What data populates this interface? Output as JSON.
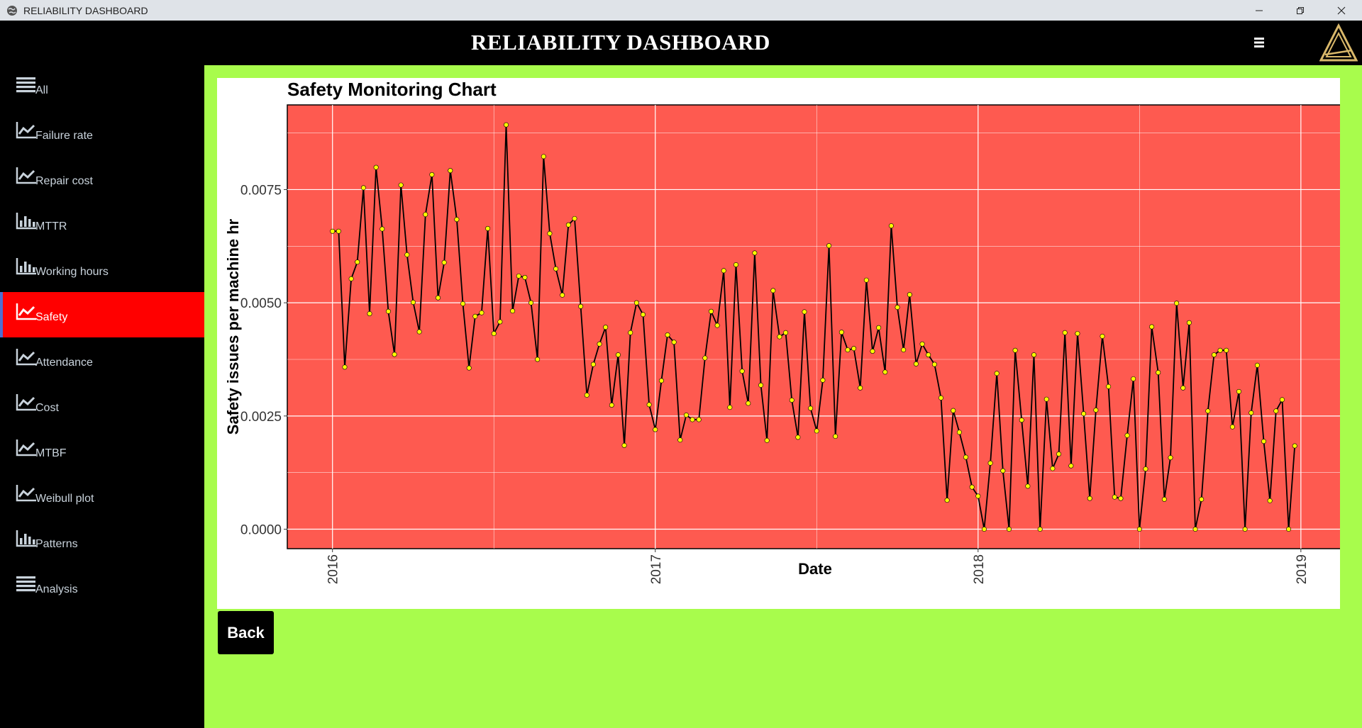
{
  "window": {
    "title": "RELIABILITY DASHBOARD"
  },
  "header": {
    "title": "RELIABILITY DASHBOARD",
    "menu_icon": "hamburger-icon",
    "logo_icon": "triangle-logo-icon"
  },
  "sidebar": {
    "items": [
      {
        "label": "All",
        "icon": "list-icon",
        "active": false
      },
      {
        "label": "Failure rate",
        "icon": "line-chart-icon",
        "active": false
      },
      {
        "label": "Repair cost",
        "icon": "line-chart-icon",
        "active": false
      },
      {
        "label": "MTTR",
        "icon": "bar-chart-icon",
        "active": false
      },
      {
        "label": "Working hours",
        "icon": "bar-chart-icon",
        "active": false
      },
      {
        "label": "Safety",
        "icon": "line-chart-icon",
        "active": true
      },
      {
        "label": "Attendance",
        "icon": "line-chart-icon",
        "active": false
      },
      {
        "label": "Cost",
        "icon": "line-chart-icon",
        "active": false
      },
      {
        "label": "MTBF",
        "icon": "line-chart-icon",
        "active": false
      },
      {
        "label": "Weibull plot",
        "icon": "line-chart-icon",
        "active": false
      },
      {
        "label": "Patterns",
        "icon": "bar-chart-icon",
        "active": false
      },
      {
        "label": "Analysis",
        "icon": "list-icon",
        "active": false
      }
    ]
  },
  "main": {
    "back_label": "Back"
  },
  "colors": {
    "content_bg": "#a8fc4c",
    "plot_bg": "#fe5a50",
    "active_nav": "#ff0000",
    "point": "#ffff00",
    "line": "#000000"
  },
  "chart_data": {
    "type": "line",
    "title": "Safety Monitoring Chart",
    "xlabel": "Date",
    "ylabel": "Safety issues per machine hr",
    "x_ticks": [
      "2016",
      "2017",
      "2018",
      "2019"
    ],
    "y_ticks": [
      "0.0000",
      "0.0025",
      "0.0050",
      "0.0075"
    ],
    "xlim": [
      2015.86,
      2019.13
    ],
    "ylim": [
      -0.00043,
      0.00937
    ],
    "grid": true,
    "x": [
      2016.0,
      2016.019,
      2016.038,
      2016.058,
      2016.077,
      2016.096,
      2016.115,
      2016.135,
      2016.154,
      2016.173,
      2016.192,
      2016.212,
      2016.231,
      2016.25,
      2016.269,
      2016.288,
      2016.308,
      2016.327,
      2016.346,
      2016.365,
      2016.385,
      2016.404,
      2016.423,
      2016.442,
      2016.462,
      2016.481,
      2016.5,
      2016.519,
      2016.538,
      2016.558,
      2016.577,
      2016.596,
      2016.615,
      2016.635,
      2016.654,
      2016.673,
      2016.692,
      2016.712,
      2016.731,
      2016.75,
      2016.769,
      2016.788,
      2016.808,
      2016.827,
      2016.846,
      2016.865,
      2016.885,
      2016.904,
      2016.923,
      2016.942,
      2016.962,
      2016.981,
      2017.0,
      2017.019,
      2017.038,
      2017.058,
      2017.077,
      2017.096,
      2017.115,
      2017.135,
      2017.154,
      2017.173,
      2017.192,
      2017.212,
      2017.231,
      2017.25,
      2017.269,
      2017.288,
      2017.308,
      2017.327,
      2017.346,
      2017.365,
      2017.385,
      2017.404,
      2017.423,
      2017.442,
      2017.462,
      2017.481,
      2017.5,
      2017.519,
      2017.538,
      2017.558,
      2017.577,
      2017.596,
      2017.615,
      2017.635,
      2017.654,
      2017.673,
      2017.692,
      2017.712,
      2017.731,
      2017.75,
      2017.769,
      2017.788,
      2017.808,
      2017.827,
      2017.846,
      2017.865,
      2017.885,
      2017.904,
      2017.923,
      2017.942,
      2017.962,
      2017.981,
      2018.0,
      2018.019,
      2018.038,
      2018.058,
      2018.077,
      2018.096,
      2018.115,
      2018.135,
      2018.154,
      2018.173,
      2018.192,
      2018.212,
      2018.231,
      2018.25,
      2018.269,
      2018.288,
      2018.308,
      2018.327,
      2018.346,
      2018.365,
      2018.385,
      2018.404,
      2018.423,
      2018.442,
      2018.462,
      2018.481,
      2018.5,
      2018.519,
      2018.538,
      2018.558,
      2018.577,
      2018.596,
      2018.615,
      2018.635,
      2018.654,
      2018.673,
      2018.692,
      2018.712,
      2018.731,
      2018.75,
      2018.769,
      2018.788,
      2018.808,
      2018.827,
      2018.846,
      2018.865,
      2018.885,
      2018.904,
      2018.923,
      2018.942,
      2018.962,
      2018.981
    ],
    "series": [
      {
        "values": [
          0.00658,
          0.00658,
          0.00358,
          0.00553,
          0.0059,
          0.00754,
          0.00476,
          0.00799,
          0.00663,
          0.00481,
          0.00386,
          0.0076,
          0.00606,
          0.00501,
          0.00436,
          0.00695,
          0.00783,
          0.00511,
          0.00589,
          0.00792,
          0.00684,
          0.00498,
          0.00356,
          0.0047,
          0.00478,
          0.00664,
          0.00432,
          0.00458,
          0.00893,
          0.00482,
          0.00559,
          0.00556,
          0.005,
          0.00375,
          0.00823,
          0.00653,
          0.00575,
          0.00517,
          0.00672,
          0.00686,
          0.00492,
          0.00296,
          0.00364,
          0.00409,
          0.00446,
          0.00274,
          0.00385,
          0.00185,
          0.00434,
          0.005,
          0.00474,
          0.00275,
          0.0022,
          0.00328,
          0.00429,
          0.00413,
          0.00197,
          0.00252,
          0.00242,
          0.00242,
          0.00378,
          0.00481,
          0.0045,
          0.00571,
          0.00269,
          0.00584,
          0.00349,
          0.00278,
          0.0061,
          0.00318,
          0.00196,
          0.00527,
          0.00425,
          0.00434,
          0.00285,
          0.00203,
          0.0048,
          0.00267,
          0.00217,
          0.00329,
          0.00626,
          0.00205,
          0.00435,
          0.00396,
          0.00399,
          0.00312,
          0.0055,
          0.00393,
          0.00445,
          0.00347,
          0.0067,
          0.0049,
          0.00396,
          0.00518,
          0.00365,
          0.00409,
          0.00385,
          0.00364,
          0.0029,
          0.00064,
          0.00262,
          0.00214,
          0.00159,
          0.00093,
          0.00073,
          0.0,
          0.00146,
          0.00344,
          0.00129,
          0.0,
          0.00395,
          0.00241,
          0.00095,
          0.00385,
          0.0,
          0.00287,
          0.00134,
          0.00166,
          0.00434,
          0.0014,
          0.00432,
          0.00255,
          0.00068,
          0.00263,
          0.00426,
          0.00315,
          0.00071,
          0.00068,
          0.00207,
          0.00332,
          0.0,
          0.00133,
          0.00447,
          0.00346,
          0.00066,
          0.00158,
          0.00499,
          0.00312,
          0.00456,
          0.0,
          0.00066,
          0.00261,
          0.00385,
          0.00395,
          0.00395,
          0.00226,
          0.00304,
          0.0,
          0.00257,
          0.00362,
          0.00194,
          0.00063,
          0.00261,
          0.00286,
          0.0,
          0.00184
        ]
      }
    ]
  }
}
